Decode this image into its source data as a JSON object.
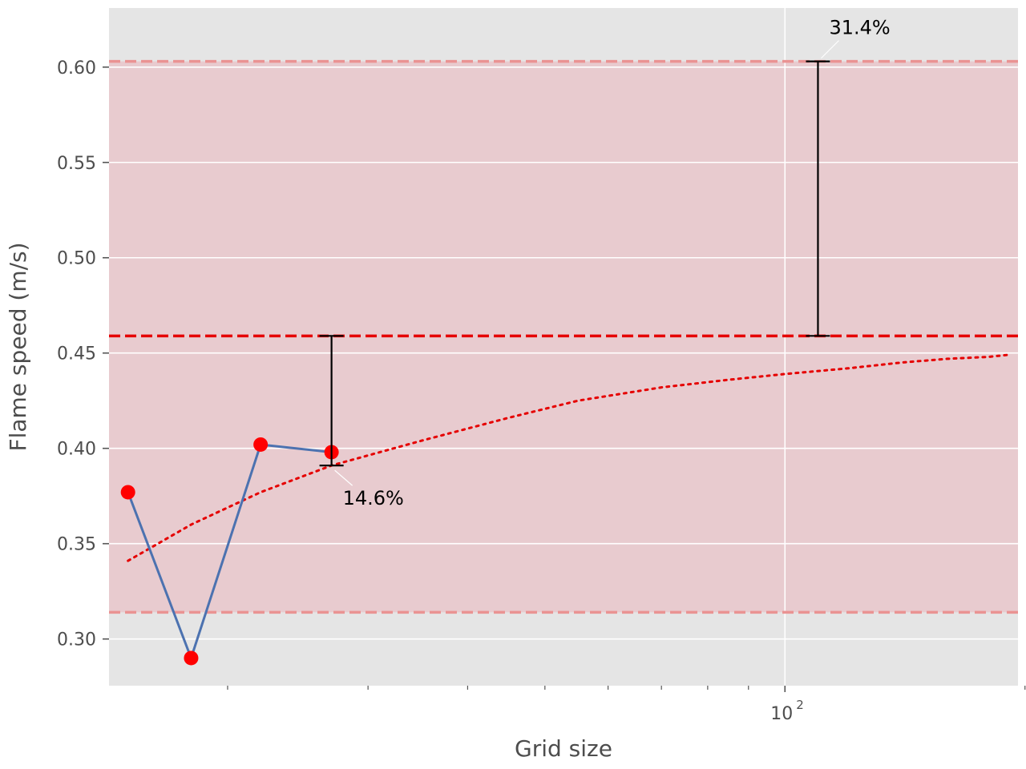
{
  "chart_data": {
    "type": "line",
    "xlabel": "Grid size",
    "ylabel": "Flame speed (m/s)",
    "xscale": "log",
    "xlim": [
      14.2,
      196
    ],
    "ylim": [
      0.2755,
      0.631
    ],
    "x_major_ticks": [
      {
        "value": 100,
        "label": "10",
        "sup": "2"
      }
    ],
    "x_minor_ticks": [
      20,
      30,
      40,
      50,
      60,
      70,
      80,
      90,
      200
    ],
    "y_ticks": [
      {
        "value": 0.3,
        "label": "0.30"
      },
      {
        "value": 0.35,
        "label": "0.35"
      },
      {
        "value": 0.4,
        "label": "0.40"
      },
      {
        "value": 0.45,
        "label": "0.45"
      },
      {
        "value": 0.5,
        "label": "0.50"
      },
      {
        "value": 0.55,
        "label": "0.55"
      },
      {
        "value": 0.6,
        "label": "0.60"
      }
    ],
    "grid": true,
    "series": [
      {
        "x": [
          15,
          18,
          22,
          27
        ],
        "y": [
          0.377,
          0.29,
          0.402,
          0.398
        ],
        "style": "line-with-markers"
      }
    ],
    "extrapolation_curve": {
      "x": [
        15,
        18,
        22,
        27,
        35,
        45,
        55,
        70,
        85,
        100,
        120,
        140,
        160,
        180,
        190
      ],
      "y": [
        0.341,
        0.36,
        0.377,
        0.391,
        0.404,
        0.416,
        0.425,
        0.432,
        0.436,
        0.439,
        0.442,
        0.445,
        0.447,
        0.448,
        0.449
      ]
    },
    "reference_line": 0.459,
    "uncertainty_band": [
      0.314,
      0.603
    ],
    "error_bars": [
      {
        "x": 27,
        "low": 0.391,
        "high": 0.459,
        "label": "14.6%"
      },
      {
        "x": 110,
        "low": 0.459,
        "high": 0.603,
        "label": "31.4%"
      }
    ],
    "colors": {
      "plot_bg": "#e5e5e5",
      "band": "#e8cbcf",
      "line": "#4c72b0",
      "marker": "#ff0000",
      "reference": "#e50000",
      "band_edge": "#ea9393",
      "grid": "#ffffff",
      "errorbar": "#000000"
    }
  }
}
